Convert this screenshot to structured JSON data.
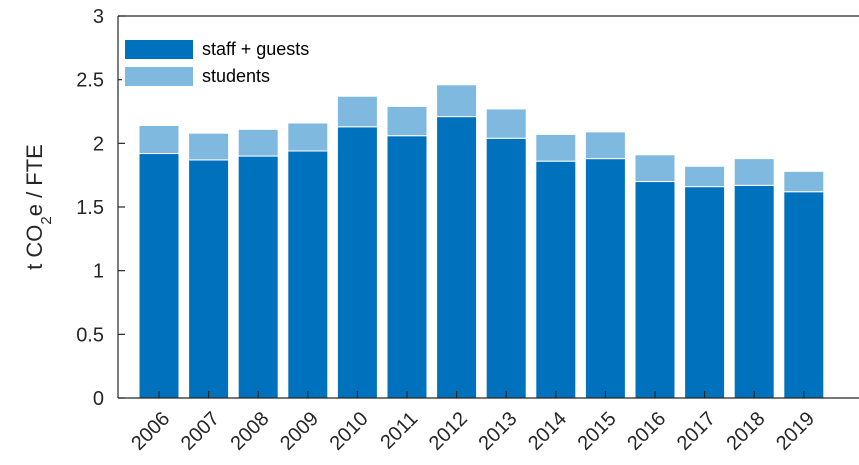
{
  "chart_data": {
    "type": "bar",
    "stacked": true,
    "categories": [
      "2006",
      "2007",
      "2008",
      "2009",
      "2010",
      "2011",
      "2012",
      "2013",
      "2014",
      "2015",
      "2016",
      "2017",
      "2018",
      "2019"
    ],
    "series": [
      {
        "name": "staff + guests",
        "color": "#0072BD",
        "values": [
          1.92,
          1.87,
          1.9,
          1.94,
          2.13,
          2.06,
          2.21,
          2.04,
          1.86,
          1.88,
          1.7,
          1.66,
          1.67,
          1.62
        ]
      },
      {
        "name": "students",
        "color": "#7FB9E0",
        "values": [
          0.22,
          0.21,
          0.21,
          0.22,
          0.24,
          0.23,
          0.25,
          0.23,
          0.21,
          0.21,
          0.21,
          0.16,
          0.21,
          0.16
        ]
      }
    ],
    "ylabel_parts": {
      "pre": "t CO",
      "sub": "2",
      "post": "e / FTE"
    },
    "ylim": [
      0,
      3
    ],
    "yticks": [
      0,
      0.5,
      1,
      1.5,
      2,
      2.5,
      3
    ],
    "ytick_labels": [
      "0",
      "0.5",
      "1",
      "1.5",
      "2",
      "2.5",
      "3"
    ],
    "legend_position": "top-left",
    "grid": false
  }
}
